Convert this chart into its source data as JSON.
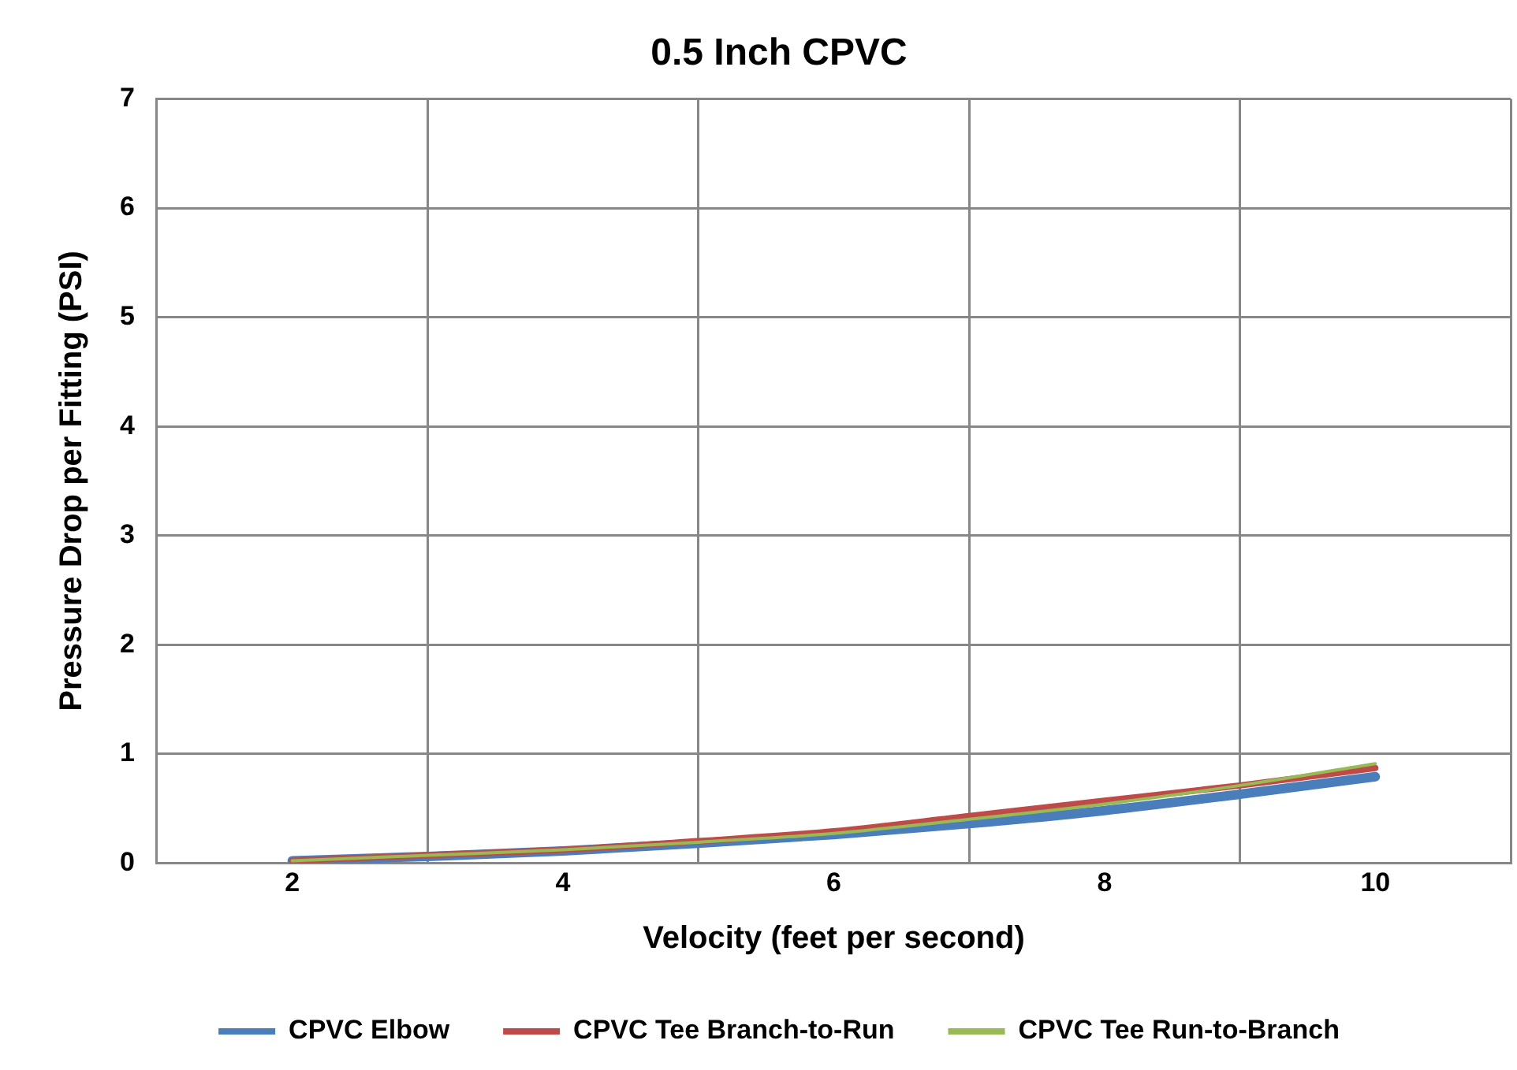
{
  "chart_data": {
    "type": "line",
    "title": "0.5 Inch CPVC",
    "xlabel": "Velocity (feet per second)",
    "ylabel": "Pressure Drop per Fitting (PSI)",
    "x": [
      2,
      3,
      4,
      5,
      6,
      7,
      8,
      9,
      10
    ],
    "xlim": [
      1,
      11
    ],
    "xticks": [
      {
        "value": 1,
        "label": null
      },
      {
        "value": 2,
        "label": "2"
      },
      {
        "value": 3,
        "label": null
      },
      {
        "value": 4,
        "label": "4"
      },
      {
        "value": 5,
        "label": null
      },
      {
        "value": 6,
        "label": "6"
      },
      {
        "value": 7,
        "label": null
      },
      {
        "value": 8,
        "label": "8"
      },
      {
        "value": 9,
        "label": null
      },
      {
        "value": 10,
        "label": "10"
      },
      {
        "value": 11,
        "label": null
      }
    ],
    "ylim": [
      0,
      7
    ],
    "yticks": [
      0,
      1,
      2,
      3,
      4,
      5,
      6,
      7
    ],
    "grid": true,
    "legend": "bottom",
    "marker": "none",
    "line_style": "solid",
    "series": [
      {
        "name": "CPVC Elbow",
        "color": "#4a7ebb",
        "values": [
          0.02,
          0.06,
          0.11,
          0.18,
          0.26,
          0.36,
          0.48,
          0.63,
          0.79
        ]
      },
      {
        "name": "CPVC Tee Branch-to-Run",
        "color": "#be4b48",
        "values": [
          0.02,
          0.07,
          0.12,
          0.2,
          0.29,
          0.43,
          0.57,
          0.71,
          0.87
        ]
      },
      {
        "name": "CPVC Tee Run-to-Branch",
        "color": "#98b954",
        "values": [
          0.02,
          0.07,
          0.12,
          0.19,
          0.27,
          0.4,
          0.54,
          0.71,
          0.91
        ]
      }
    ]
  }
}
